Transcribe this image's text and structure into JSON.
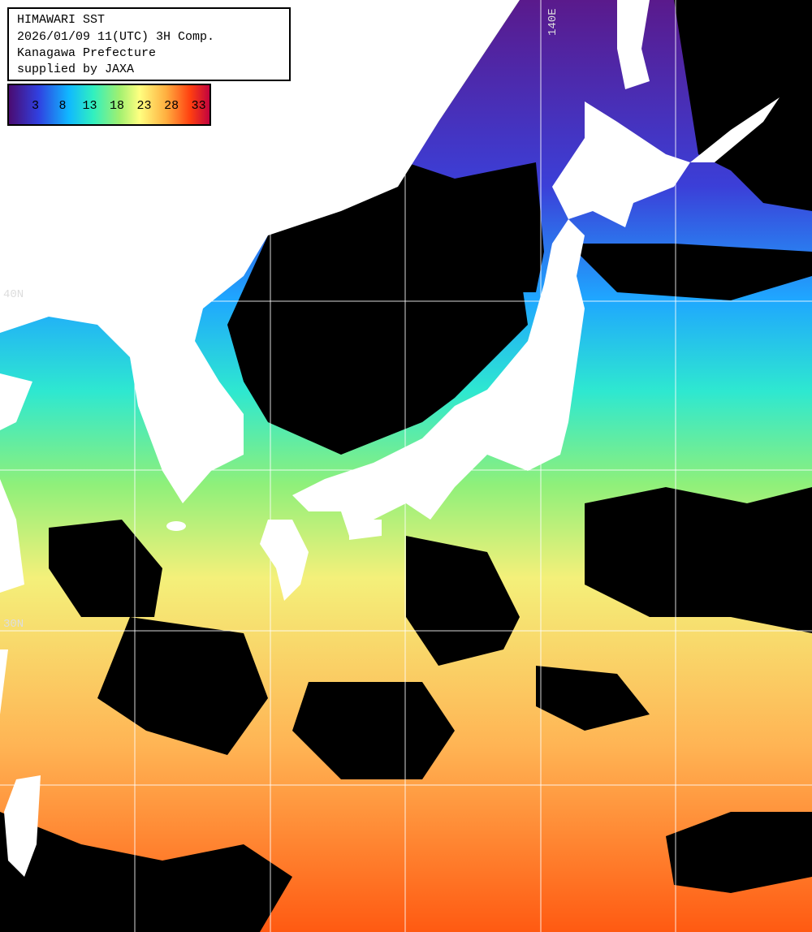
{
  "header": {
    "lines": [
      "HIMAWARI SST",
      "2026/01/09 11(UTC) 3H Comp.",
      "Kanagawa Prefecture",
      "supplied by JAXA"
    ]
  },
  "colorbar": {
    "range": [
      -2,
      35
    ],
    "ticks": [
      3,
      8,
      13,
      18,
      23,
      28,
      33
    ]
  },
  "grid_labels": {
    "longitude": [
      "140E"
    ],
    "latitude": [
      "40N",
      "30N"
    ]
  }
}
